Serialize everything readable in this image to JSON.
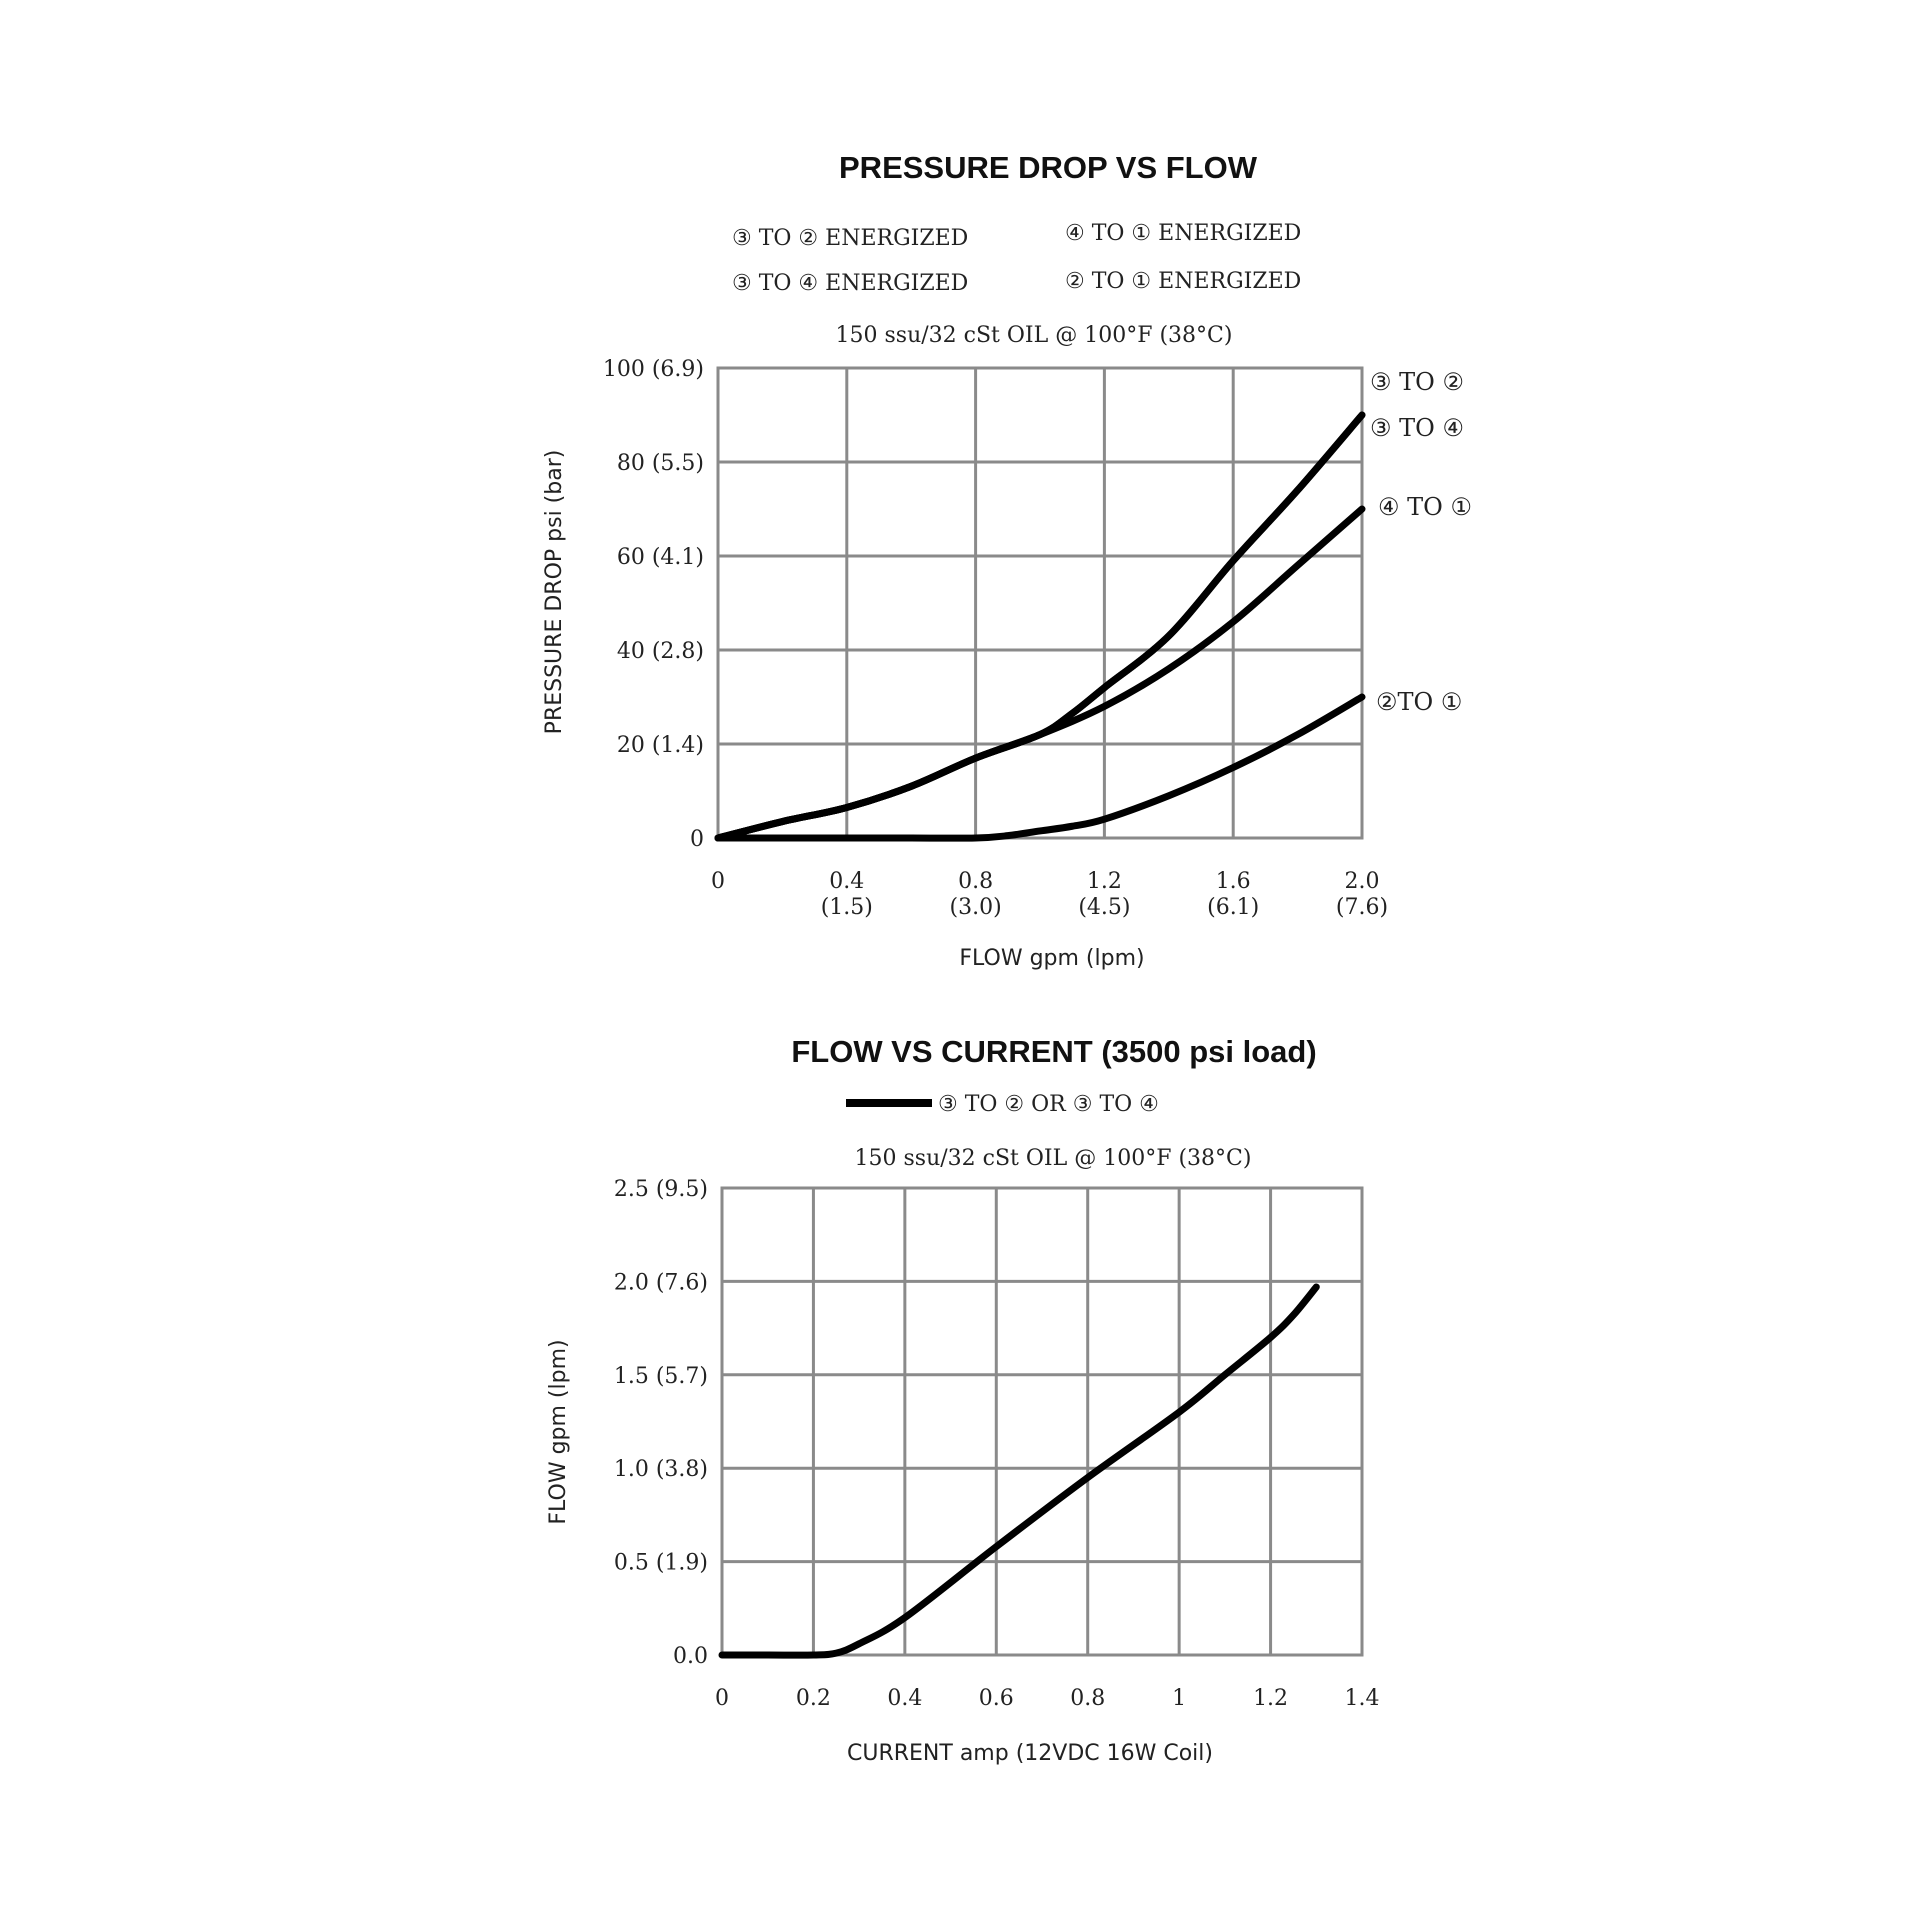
{
  "chart_data": [
    {
      "type": "line",
      "title": "PRESSURE DROP VS FLOW",
      "legend": [
        "③ TO ② ENERGIZED",
        "④ TO ① ENERGIZED",
        "③ TO ④ ENERGIZED",
        "② TO ① ENERGIZED"
      ],
      "subtitle": "150 ssu/32 cSt OIL @ 100°F (38°C)",
      "xlabel": "FLOW gpm (lpm)",
      "ylabel": "PRESSURE DROP psi (bar)",
      "xlim": [
        0,
        2.0
      ],
      "ylim": [
        0,
        100
      ],
      "grid": true,
      "xticks": [
        {
          "value": 0,
          "label": "0",
          "label2": ""
        },
        {
          "value": 0.4,
          "label": "0.4",
          "label2": "(1.5)"
        },
        {
          "value": 0.8,
          "label": "0.8",
          "label2": "(3.0)"
        },
        {
          "value": 1.2,
          "label": "1.2",
          "label2": "(4.5)"
        },
        {
          "value": 1.6,
          "label": "1.6",
          "label2": "(6.1)"
        },
        {
          "value": 2.0,
          "label": "2.0",
          "label2": "(7.6)"
        }
      ],
      "yticks": [
        {
          "value": 0,
          "label": "0"
        },
        {
          "value": 20,
          "label": "20 (1.4)"
        },
        {
          "value": 40,
          "label": "40 (2.8)"
        },
        {
          "value": 60,
          "label": "60 (4.1)"
        },
        {
          "value": 80,
          "label": "80 (5.5)"
        },
        {
          "value": 100,
          "label": "100 (6.9)"
        }
      ],
      "series": [
        {
          "name": "③ TO ②",
          "x": [
            0,
            0.2,
            0.4,
            0.6,
            0.8,
            1.0,
            1.1,
            1.2,
            1.4,
            1.6,
            1.8,
            2.0
          ],
          "y": [
            0,
            3.5,
            6.5,
            11,
            17,
            22,
            26.5,
            32,
            43,
            59,
            74,
            90
          ]
        },
        {
          "name": "③ TO ④",
          "x": [
            0,
            0.2,
            0.4,
            0.6,
            0.8,
            1.0,
            1.1,
            1.2,
            1.4,
            1.6,
            1.8,
            2.0
          ],
          "y": [
            0,
            3.5,
            6.5,
            11,
            17,
            22,
            26.5,
            32,
            43,
            59,
            74,
            90
          ]
        },
        {
          "name": "④ TO ①",
          "x": [
            0,
            0.2,
            0.4,
            0.6,
            0.8,
            1.0,
            1.2,
            1.4,
            1.6,
            1.8,
            2.0
          ],
          "y": [
            0,
            3.5,
            6.5,
            11,
            17,
            22,
            28,
            36,
            46,
            58,
            70
          ]
        },
        {
          "name": "② TO ①",
          "x": [
            0,
            0.2,
            0.4,
            0.6,
            0.8,
            0.9,
            1.0,
            1.1,
            1.2,
            1.4,
            1.6,
            1.8,
            2.0
          ],
          "y": [
            0,
            0,
            0,
            0,
            0,
            0.5,
            1.5,
            2.5,
            4,
            9,
            15,
            22,
            30
          ]
        }
      ],
      "end_labels": [
        "③ TO ②",
        "③ TO ④",
        "④ TO ①",
        "②TO ①"
      ]
    },
    {
      "type": "line",
      "title": "FLOW VS CURRENT (3500 psi load)",
      "legend": [
        "③ TO ② OR ③ TO ④"
      ],
      "subtitle": "150 ssu/32 cSt OIL @ 100°F (38°C)",
      "xlabel": "CURRENT amp (12VDC 16W Coil)",
      "ylabel": "FLOW gpm (lpm)",
      "xlim": [
        0,
        1.4
      ],
      "ylim": [
        0,
        2.5
      ],
      "grid": true,
      "xticks": [
        {
          "value": 0,
          "label": "0"
        },
        {
          "value": 0.2,
          "label": "0.2"
        },
        {
          "value": 0.4,
          "label": "0.4"
        },
        {
          "value": 0.6,
          "label": "0.6"
        },
        {
          "value": 0.8,
          "label": "0.8"
        },
        {
          "value": 1.0,
          "label": "1"
        },
        {
          "value": 1.2,
          "label": "1.2"
        },
        {
          "value": 1.4,
          "label": "1.4"
        }
      ],
      "yticks": [
        {
          "value": 0,
          "label": "0.0"
        },
        {
          "value": 0.5,
          "label": "0.5 (1.9)"
        },
        {
          "value": 1.0,
          "label": "1.0 (3.8)"
        },
        {
          "value": 1.5,
          "label": "1.5 (5.7)"
        },
        {
          "value": 2.0,
          "label": "2.0 (7.6)"
        },
        {
          "value": 2.5,
          "label": "2.5 (9.5)"
        }
      ],
      "series": [
        {
          "name": "③ TO ② OR ③ TO ④",
          "x": [
            0,
            0.1,
            0.2,
            0.25,
            0.3,
            0.4,
            0.6,
            0.8,
            1.0,
            1.1,
            1.2,
            1.25,
            1.3
          ],
          "y": [
            0,
            0,
            0,
            0.01,
            0.06,
            0.2,
            0.58,
            0.95,
            1.3,
            1.5,
            1.7,
            1.82,
            1.97
          ]
        }
      ]
    }
  ]
}
